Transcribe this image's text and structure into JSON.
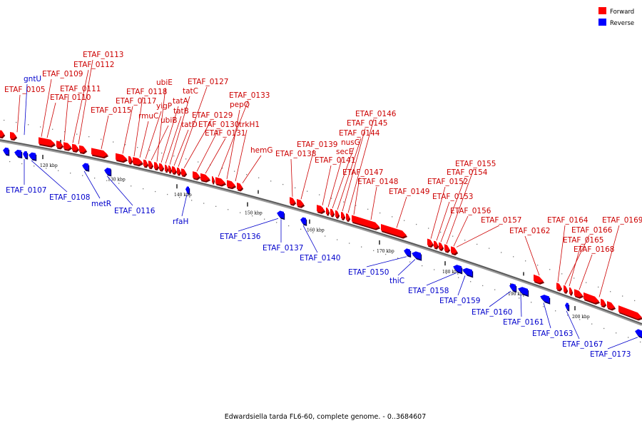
{
  "caption": "Edwardsiella tarda FL6-60, complete genome. - 0..3684607",
  "legend": {
    "forward": {
      "label": "Forward",
      "color": "#ff0000"
    },
    "reverse": {
      "label": "Reverse",
      "color": "#0000ff"
    }
  },
  "scale": {
    "ticks": [
      {
        "kbp": 120,
        "label": "120 kbp"
      },
      {
        "kbp": 130,
        "label": "130 kbp"
      },
      {
        "kbp": 140,
        "label": "140 kbp"
      },
      {
        "kbp": 150,
        "label": "150 kbp"
      },
      {
        "kbp": 160,
        "label": "160 kbp"
      },
      {
        "kbp": 170,
        "label": "170 kbp"
      },
      {
        "kbp": 180,
        "label": "180 kbp"
      },
      {
        "kbp": 190,
        "label": "190 kbp"
      },
      {
        "kbp": 200,
        "label": "200 kbp"
      }
    ]
  },
  "genes": {
    "forward": [
      "ETAF_0105",
      "ETAF_0109",
      "ETAF_0110",
      "ETAF_0111",
      "ETAF_0112",
      "ETAF_0113",
      "ETAF_0115",
      "ETAF_0117",
      "ETAF_0118",
      "rmuC",
      "yigP",
      "ubiB",
      "ubiE",
      "tatA",
      "tatB",
      "tatC",
      "tatD",
      "ETAF_0127",
      "ETAF_0129",
      "ETAF_0130",
      "ETAF_0131",
      "ETAF_0133",
      "pepQ",
      "trkH1",
      "hemG",
      "ETAF_0138",
      "ETAF_0139",
      "ETAF_0141",
      "secE",
      "nusG",
      "ETAF_0144",
      "ETAF_0145",
      "ETAF_0146",
      "ETAF_0147",
      "ETAF_0148",
      "ETAF_0149",
      "ETAF_0152",
      "ETAF_0153",
      "ETAF_0154",
      "ETAF_0155",
      "ETAF_0156",
      "ETAF_0157",
      "ETAF_0162",
      "ETAF_0164",
      "ETAF_0165",
      "ETAF_0166",
      "ETAF_0168",
      "ETAF_0169"
    ],
    "reverse": [
      "gntU",
      "ETAF_0107",
      "ETAF_0108",
      "metR",
      "ETAF_0116",
      "rfaH",
      "ETAF_0136",
      "ETAF_0137",
      "ETAF_0140",
      "ETAF_0150",
      "thiC",
      "ETAF_0158",
      "ETAF_0159",
      "ETAF_0160",
      "ETAF_0161",
      "ETAF_0163",
      "ETAF_0167",
      "ETAF_0173"
    ]
  }
}
